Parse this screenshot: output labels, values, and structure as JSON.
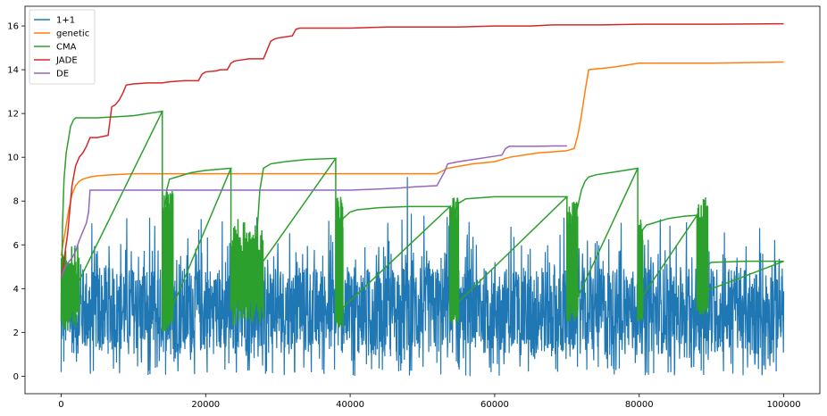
{
  "chart_data": {
    "type": "line",
    "xlim": [
      -5000,
      105000
    ],
    "ylim": [
      -0.8,
      16.9
    ],
    "x_ticks": [
      0,
      20000,
      40000,
      60000,
      80000,
      100000
    ],
    "x_tick_labels": [
      "0",
      "20000",
      "40000",
      "60000",
      "80000",
      "100000"
    ],
    "y_ticks": [
      0,
      2,
      4,
      6,
      8,
      10,
      12,
      14,
      16
    ],
    "y_tick_labels": [
      "0",
      "2",
      "4",
      "6",
      "8",
      "10",
      "12",
      "14",
      "16"
    ],
    "grid": false,
    "legend_position": "top-left",
    "series": [
      {
        "name": "1+1",
        "color": "#1f77b4",
        "style": "noise",
        "x_range": [
          0,
          100000
        ],
        "band_low": 0.0,
        "band_high": 6.0,
        "dense_low": 1.0,
        "dense_high": 5.0,
        "max_value": 9.1,
        "min_value": 0.0
      },
      {
        "name": "genetic",
        "color": "#ff7f0e",
        "x": [
          0,
          500,
          1000,
          1500,
          2000,
          2500,
          3000,
          4000,
          5000,
          7000,
          10000,
          20000,
          40000,
          52000,
          53500,
          57000,
          60000,
          62000,
          66000,
          70000,
          71000,
          71500,
          72000,
          72500,
          73000,
          76000,
          78000,
          80000,
          90000,
          100000
        ],
        "y": [
          5.5,
          6.5,
          7.5,
          8.3,
          8.7,
          8.9,
          9.0,
          9.1,
          9.15,
          9.2,
          9.25,
          9.25,
          9.25,
          9.25,
          9.5,
          9.7,
          9.8,
          10.0,
          10.2,
          10.3,
          10.4,
          11.0,
          11.9,
          13.0,
          14.0,
          14.1,
          14.2,
          14.3,
          14.3,
          14.35
        ]
      },
      {
        "name": "CMA",
        "color": "#2ca02c",
        "style": "segments",
        "segments": [
          {
            "x": [
              0,
              200,
              400,
              700,
              1000,
              1300,
              1700,
              2000,
              5000,
              10000,
              14000
            ],
            "y": [
              2.5,
              7.0,
              9.0,
              10.2,
              10.8,
              11.4,
              11.7,
              11.8,
              11.8,
              11.9,
              12.1
            ],
            "osc": [
              0,
              2500,
              2.0,
              6.0
            ]
          },
          {
            "x": [
              14000,
              14200,
              14600,
              15000,
              16000,
              18000,
              20000,
              23500
            ],
            "y": [
              2.5,
              7.0,
              8.5,
              9.0,
              9.1,
              9.3,
              9.4,
              9.5
            ],
            "osc": [
              14000,
              15500,
              2.0,
              8.5
            ]
          },
          {
            "x": [
              23500,
              24000,
              25000,
              26000,
              27000,
              27500,
              28000,
              29000,
              31000,
              34000,
              38000
            ],
            "y": [
              3.0,
              5.0,
              5.5,
              5.0,
              6.0,
              8.5,
              9.5,
              9.7,
              9.8,
              9.9,
              9.95
            ],
            "osc": [
              23500,
              28000,
              2.3,
              7.2
            ]
          },
          {
            "x": [
              38000,
              38500,
              39000,
              40000,
              41000,
              44000,
              48000,
              53800
            ],
            "y": [
              2.5,
              6.0,
              7.2,
              7.5,
              7.6,
              7.7,
              7.75,
              7.75
            ],
            "osc": [
              38000,
              39000,
              2.2,
              8.2
            ]
          },
          {
            "x": [
              53800,
              54000,
              54500,
              55000,
              56000,
              60000,
              65000,
              70000
            ],
            "y": [
              2.5,
              6.5,
              7.5,
              7.9,
              8.1,
              8.2,
              8.2,
              8.2
            ],
            "osc": [
              53800,
              55000,
              2.3,
              8.2
            ]
          },
          {
            "x": [
              70000,
              70500,
              71000,
              72000,
              72500,
              73000,
              74000,
              76000,
              78000,
              79800
            ],
            "y": [
              3.0,
              6.0,
              7.0,
              8.5,
              8.9,
              9.1,
              9.2,
              9.3,
              9.4,
              9.5
            ],
            "osc": [
              70000,
              71500,
              2.5,
              8.0
            ]
          },
          {
            "x": [
              79800,
              80000,
              80500,
              81000,
              82000,
              84000,
              86000,
              88000
            ],
            "y": [
              2.5,
              6.0,
              6.7,
              6.9,
              7.0,
              7.2,
              7.3,
              7.35
            ],
            "osc": [
              79800,
              80500,
              2.5,
              7.2
            ]
          },
          {
            "x": [
              88000,
              88500,
              89000,
              89500,
              90000,
              95000,
              100000
            ],
            "y": [
              3.0,
              6.0,
              5.0,
              5.1,
              5.2,
              5.25,
              5.25
            ],
            "osc": [
              88000,
              89500,
              2.8,
              8.2
            ]
          }
        ]
      },
      {
        "name": "JADE",
        "color": "#d62728",
        "x": [
          0,
          300,
          600,
          900,
          1200,
          1500,
          2000,
          2500,
          3000,
          3500,
          4000,
          5000,
          6500,
          7000,
          7500,
          8000,
          8500,
          9000,
          10000,
          12000,
          14000,
          15000,
          17000,
          19000,
          19500,
          20000,
          21500,
          22000,
          23000,
          23500,
          24000,
          25000,
          26000,
          28000,
          28500,
          29000,
          29500,
          30000,
          31000,
          32000,
          32500,
          33000,
          35000,
          40000,
          45000,
          50000,
          55000,
          60000,
          62000,
          65000,
          68000,
          70000,
          75000,
          80000,
          90000,
          100000
        ],
        "y": [
          4.5,
          5.0,
          5.8,
          6.5,
          7.6,
          8.7,
          9.6,
          10.0,
          10.2,
          10.5,
          10.9,
          10.9,
          11.0,
          12.3,
          12.4,
          12.6,
          12.9,
          13.3,
          13.35,
          13.4,
          13.4,
          13.45,
          13.5,
          13.5,
          13.8,
          13.9,
          13.95,
          14.0,
          14.0,
          14.3,
          14.4,
          14.45,
          14.5,
          14.5,
          14.9,
          15.3,
          15.4,
          15.45,
          15.5,
          15.55,
          15.85,
          15.9,
          15.9,
          15.9,
          15.95,
          15.95,
          15.95,
          16.0,
          16.0,
          16.0,
          16.05,
          16.05,
          16.05,
          16.08,
          16.08,
          16.1
        ]
      },
      {
        "name": "DE",
        "color": "#9467bd",
        "x": [
          0,
          300,
          600,
          1000,
          1500,
          2000,
          2500,
          3000,
          3500,
          3800,
          4000,
          5000,
          10000,
          20000,
          30000,
          40000,
          44000,
          47000,
          49000,
          52000,
          53000,
          53500,
          55000,
          57000,
          59000,
          61000,
          61500,
          62000,
          64000,
          66000,
          68000,
          70000
        ],
        "y": [
          4.5,
          4.8,
          5.0,
          5.2,
          5.4,
          5.7,
          6.2,
          6.6,
          7.0,
          7.5,
          8.5,
          8.5,
          8.5,
          8.5,
          8.5,
          8.5,
          8.55,
          8.6,
          8.65,
          8.7,
          9.3,
          9.7,
          9.8,
          9.9,
          10.0,
          10.1,
          10.4,
          10.5,
          10.5,
          10.5,
          10.52,
          10.52
        ]
      }
    ]
  }
}
